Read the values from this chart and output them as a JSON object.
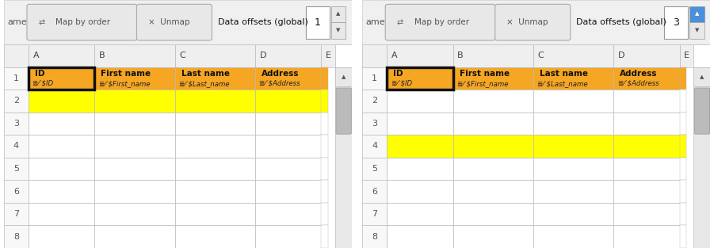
{
  "panels": [
    {
      "offset_value": "1",
      "yellow_row": 2,
      "spinner_up_highlight": false
    },
    {
      "offset_value": "3",
      "yellow_row": 4,
      "spinner_up_highlight": true
    }
  ],
  "columns": [
    "A",
    "B",
    "C",
    "D",
    "E"
  ],
  "rows": [
    "1",
    "2",
    "3",
    "4",
    "5",
    "6",
    "7",
    "8"
  ],
  "header_bg": "#F5A623",
  "yellow_bg": "#FFFF00",
  "white_bg": "#FFFFFF",
  "grid_color": "#BBBBBB",
  "toolbar_bg": "#F0F0F0",
  "toolbar_btn_bg": "#E8E8E8",
  "toolbar_btn_border": "#AAAAAA",
  "col_header_bg": "#EFEFEF",
  "col_header_text": "#444444",
  "row_header_bg": "#F8F8F8",
  "selected_cell_border": "#111111",
  "scroll_bg": "#E8E8E8",
  "scroll_thumb": "#BBBBBB",
  "fields": [
    {
      "name": "ID",
      "var": "$ID"
    },
    {
      "name": "First name",
      "var": "$First_name"
    },
    {
      "name": "Last name",
      "var": "$Last_name"
    },
    {
      "name": "Address",
      "var": "$Address"
    }
  ],
  "spinner_up_color": "#4A90D9",
  "spinner_up_arrow": "▲",
  "spinner_down_arrow": "▼",
  "fig_bg": "#FFFFFF",
  "map_icon": "⇄",
  "unmap_icon": "×"
}
